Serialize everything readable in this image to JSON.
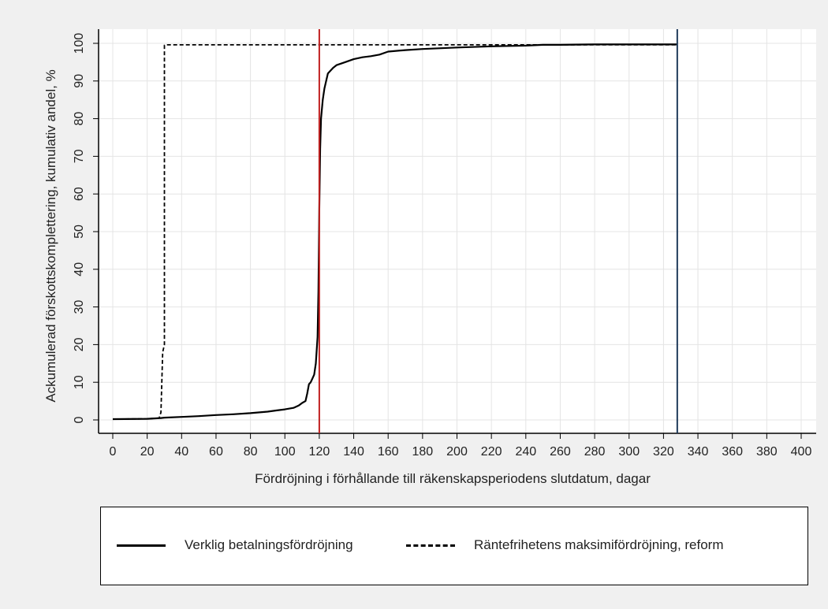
{
  "chart_data": {
    "type": "line",
    "title": "",
    "xlabel": "Fördröjning i förhållande till räkenskapsperiodens slutdatum, dagar",
    "ylabel": "Ackumulerad förskottskomplettering, kumulativ andel, %",
    "xlim": [
      0,
      400
    ],
    "ylim": [
      0,
      100
    ],
    "xticks": [
      0,
      20,
      40,
      60,
      80,
      100,
      120,
      140,
      160,
      180,
      200,
      220,
      240,
      260,
      280,
      300,
      320,
      340,
      360,
      380,
      400
    ],
    "yticks": [
      0,
      10,
      20,
      30,
      40,
      50,
      60,
      70,
      80,
      90,
      100
    ],
    "grid": true,
    "legend_position": "bottom",
    "series": [
      {
        "name": "Verklig betalningsfördröjning",
        "style": "solid",
        "color": "#000000",
        "x": [
          0,
          20,
          28,
          30,
          40,
          50,
          60,
          70,
          80,
          90,
          95,
          100,
          105,
          108,
          110,
          112,
          113,
          114,
          115,
          116,
          117,
          118,
          119,
          119.5,
          120,
          120.5,
          121,
          122,
          123,
          125,
          128,
          130,
          135,
          140,
          145,
          150,
          155,
          160,
          170,
          180,
          200,
          220,
          240,
          250,
          260,
          280,
          300,
          320,
          328
        ],
        "y": [
          0.2,
          0.3,
          0.5,
          0.6,
          0.8,
          1.0,
          1.3,
          1.5,
          1.8,
          2.2,
          2.5,
          2.8,
          3.2,
          3.8,
          4.5,
          5.0,
          7.0,
          9.5,
          10,
          11,
          12,
          15,
          22,
          34,
          56,
          72,
          80,
          85,
          88,
          92,
          93.5,
          94.2,
          95.0,
          95.8,
          96.3,
          96.6,
          97.0,
          97.8,
          98.2,
          98.5,
          98.9,
          99.2,
          99.4,
          99.6,
          99.6,
          99.7,
          99.7,
          99.7,
          99.7
        ]
      },
      {
        "name": "Räntefrihetens maksimifördröjning, reform",
        "style": "dashed",
        "color": "#000000",
        "x": [
          0,
          20,
          27,
          28,
          29,
          30,
          30,
          31,
          100,
          200,
          328
        ],
        "y": [
          0.2,
          0.3,
          0.5,
          2,
          18,
          20,
          99.5,
          99.6,
          99.6,
          99.6,
          99.6
        ]
      }
    ],
    "reference_lines": [
      {
        "x": 120,
        "color": "#c0201f"
      },
      {
        "x": 328,
        "color": "#1f3a5a"
      }
    ]
  },
  "legend": {
    "solid_label": "Verklig betalningsfördröjning",
    "dashed_label": "Räntefrihetens maksimifördröjning, reform"
  },
  "colors": {
    "background": "#f0f0f0",
    "plot_background": "#ffffff",
    "grid": "#e4e4e4",
    "red_line": "#c0201f",
    "blue_line": "#1f3a5a"
  }
}
